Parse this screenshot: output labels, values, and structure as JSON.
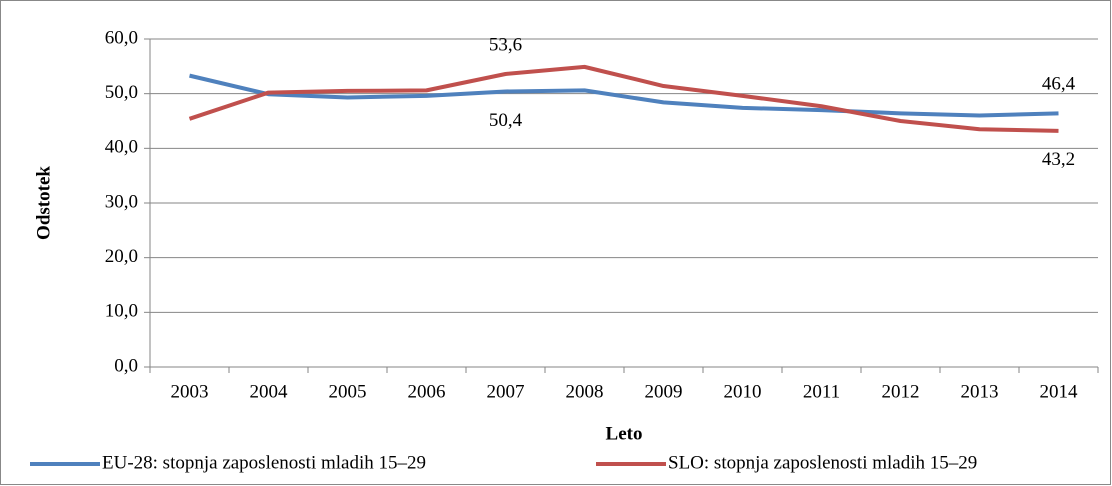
{
  "chart_data": {
    "type": "line",
    "x_label": "Leto",
    "y_label": "Odstotek",
    "categories": [
      "2003",
      "2004",
      "2005",
      "2006",
      "2007",
      "2008",
      "2009",
      "2010",
      "2011",
      "2012",
      "2013",
      "2014"
    ],
    "series": [
      {
        "name": "EU-28: stopnja zaposlenosti mladih 15–29",
        "color": "#4f81bd",
        "values": [
          53.3,
          49.9,
          49.3,
          49.6,
          50.4,
          50.6,
          48.4,
          47.4,
          47.0,
          46.4,
          46.0,
          46.4
        ],
        "value_labels": [
          null,
          null,
          null,
          null,
          "50,4",
          null,
          null,
          null,
          null,
          null,
          null,
          "46,4"
        ]
      },
      {
        "name": "SLO: stopnja zaposlenosti mladih 15–29",
        "color": "#c0504d",
        "values": [
          45.4,
          50.2,
          50.5,
          50.6,
          53.6,
          54.9,
          51.4,
          49.6,
          47.7,
          45.0,
          43.5,
          43.2
        ],
        "value_labels": [
          null,
          null,
          null,
          null,
          "53,6",
          null,
          null,
          null,
          null,
          null,
          null,
          "43,2"
        ]
      }
    ],
    "ylim": [
      0,
      60
    ],
    "yticks": [
      {
        "value": 0,
        "label": "0,0"
      },
      {
        "value": 10,
        "label": "10,0"
      },
      {
        "value": 20,
        "label": "20,0"
      },
      {
        "value": 30,
        "label": "30,0"
      },
      {
        "value": 40,
        "label": "40,0"
      },
      {
        "value": 50,
        "label": "50,0"
      },
      {
        "value": 60,
        "label": "60,0"
      }
    ],
    "grid": true,
    "legend": "bottom"
  }
}
